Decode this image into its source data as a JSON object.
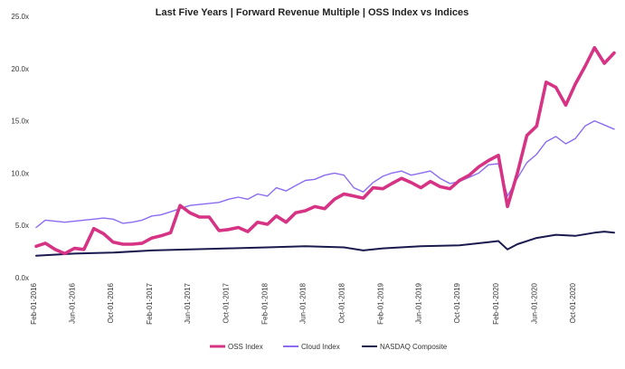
{
  "chart_data": {
    "type": "line",
    "title": "Last Five Years | Forward Revenue Multiple | OSS Index vs Indices",
    "xlabel": "",
    "ylabel": "",
    "ylim": [
      0,
      25
    ],
    "y_ticks": [
      "0.0x",
      "5.0x",
      "10.0x",
      "15.0x",
      "20.0x",
      "25.0x"
    ],
    "x_ticks": [
      {
        "label": "Feb-01-2016",
        "date": "2016-02-01"
      },
      {
        "label": "Jun-01-2016",
        "date": "2016-06-01"
      },
      {
        "label": "Oct-01-2016",
        "date": "2016-10-01"
      },
      {
        "label": "Feb-01-2017",
        "date": "2017-02-01"
      },
      {
        "label": "Jun-01-2017",
        "date": "2017-06-01"
      },
      {
        "label": "Oct-01-2017",
        "date": "2017-10-01"
      },
      {
        "label": "Feb-01-2018",
        "date": "2018-02-01"
      },
      {
        "label": "Jun-01-2018",
        "date": "2018-06-01"
      },
      {
        "label": "Oct-01-2018",
        "date": "2018-10-01"
      },
      {
        "label": "Feb-01-2019",
        "date": "2019-02-01"
      },
      {
        "label": "Jun-01-2019",
        "date": "2019-06-01"
      },
      {
        "label": "Oct-01-2019",
        "date": "2019-10-01"
      },
      {
        "label": "Feb-01-2020",
        "date": "2020-02-01"
      },
      {
        "label": "Jun-01-2020",
        "date": "2020-06-01"
      },
      {
        "label": "Oct-01-2020",
        "date": "2020-10-01"
      }
    ],
    "x_domain": [
      "2016-02-01",
      "2021-02-01"
    ],
    "grid": false,
    "legend_position": "bottom",
    "series": [
      {
        "name": "OSS Index",
        "color": "#d63384",
        "points": [
          [
            "2016-02-01",
            3.0
          ],
          [
            "2016-03-01",
            3.3
          ],
          [
            "2016-04-01",
            2.7
          ],
          [
            "2016-05-01",
            2.3
          ],
          [
            "2016-06-01",
            2.8
          ],
          [
            "2016-07-01",
            2.7
          ],
          [
            "2016-08-01",
            4.7
          ],
          [
            "2016-09-01",
            4.2
          ],
          [
            "2016-10-01",
            3.4
          ],
          [
            "2016-11-01",
            3.2
          ],
          [
            "2016-12-01",
            3.2
          ],
          [
            "2017-01-01",
            3.3
          ],
          [
            "2017-02-01",
            3.8
          ],
          [
            "2017-03-01",
            4.0
          ],
          [
            "2017-04-01",
            4.3
          ],
          [
            "2017-05-01",
            6.9
          ],
          [
            "2017-06-01",
            6.2
          ],
          [
            "2017-07-01",
            5.8
          ],
          [
            "2017-08-01",
            5.8
          ],
          [
            "2017-09-01",
            4.5
          ],
          [
            "2017-10-01",
            4.6
          ],
          [
            "2017-11-01",
            4.8
          ],
          [
            "2017-12-01",
            4.4
          ],
          [
            "2018-01-01",
            5.3
          ],
          [
            "2018-02-01",
            5.1
          ],
          [
            "2018-03-01",
            5.9
          ],
          [
            "2018-04-01",
            5.3
          ],
          [
            "2018-05-01",
            6.2
          ],
          [
            "2018-06-01",
            6.4
          ],
          [
            "2018-07-01",
            6.8
          ],
          [
            "2018-08-01",
            6.6
          ],
          [
            "2018-09-01",
            7.5
          ],
          [
            "2018-10-01",
            8.0
          ],
          [
            "2018-11-01",
            7.8
          ],
          [
            "2018-12-01",
            7.6
          ],
          [
            "2019-01-01",
            8.6
          ],
          [
            "2019-02-01",
            8.5
          ],
          [
            "2019-03-01",
            9.0
          ],
          [
            "2019-04-01",
            9.5
          ],
          [
            "2019-05-01",
            9.1
          ],
          [
            "2019-06-01",
            8.6
          ],
          [
            "2019-07-01",
            9.2
          ],
          [
            "2019-08-01",
            8.7
          ],
          [
            "2019-09-01",
            8.5
          ],
          [
            "2019-10-01",
            9.3
          ],
          [
            "2019-11-01",
            9.8
          ],
          [
            "2019-12-01",
            10.6
          ],
          [
            "2020-01-01",
            11.2
          ],
          [
            "2020-02-01",
            11.7
          ],
          [
            "2020-03-01",
            6.8
          ],
          [
            "2020-04-01",
            10.0
          ],
          [
            "2020-05-01",
            13.6
          ],
          [
            "2020-06-01",
            14.5
          ],
          [
            "2020-07-01",
            18.7
          ],
          [
            "2020-08-01",
            18.2
          ],
          [
            "2020-09-01",
            16.5
          ],
          [
            "2020-10-01",
            18.5
          ],
          [
            "2020-11-01",
            20.2
          ],
          [
            "2020-12-01",
            22.0
          ],
          [
            "2021-01-01",
            20.5
          ],
          [
            "2021-02-01",
            21.5
          ]
        ]
      },
      {
        "name": "Cloud Index",
        "color": "#8b6cf0",
        "points": [
          [
            "2016-02-01",
            4.8
          ],
          [
            "2016-03-01",
            5.5
          ],
          [
            "2016-04-01",
            5.4
          ],
          [
            "2016-05-01",
            5.3
          ],
          [
            "2016-06-01",
            5.4
          ],
          [
            "2016-07-01",
            5.5
          ],
          [
            "2016-08-01",
            5.6
          ],
          [
            "2016-09-01",
            5.7
          ],
          [
            "2016-10-01",
            5.6
          ],
          [
            "2016-11-01",
            5.2
          ],
          [
            "2016-12-01",
            5.3
          ],
          [
            "2017-01-01",
            5.5
          ],
          [
            "2017-02-01",
            5.9
          ],
          [
            "2017-03-01",
            6.0
          ],
          [
            "2017-04-01",
            6.3
          ],
          [
            "2017-05-01",
            6.6
          ],
          [
            "2017-06-01",
            6.9
          ],
          [
            "2017-07-01",
            7.0
          ],
          [
            "2017-08-01",
            7.1
          ],
          [
            "2017-09-01",
            7.2
          ],
          [
            "2017-10-01",
            7.5
          ],
          [
            "2017-11-01",
            7.7
          ],
          [
            "2017-12-01",
            7.5
          ],
          [
            "2018-01-01",
            8.0
          ],
          [
            "2018-02-01",
            7.8
          ],
          [
            "2018-03-01",
            8.6
          ],
          [
            "2018-04-01",
            8.3
          ],
          [
            "2018-05-01",
            8.8
          ],
          [
            "2018-06-01",
            9.3
          ],
          [
            "2018-07-01",
            9.4
          ],
          [
            "2018-08-01",
            9.8
          ],
          [
            "2018-09-01",
            10.0
          ],
          [
            "2018-10-01",
            9.8
          ],
          [
            "2018-11-01",
            8.6
          ],
          [
            "2018-12-01",
            8.2
          ],
          [
            "2019-01-01",
            9.1
          ],
          [
            "2019-02-01",
            9.7
          ],
          [
            "2019-03-01",
            10.0
          ],
          [
            "2019-04-01",
            10.2
          ],
          [
            "2019-05-01",
            9.8
          ],
          [
            "2019-06-01",
            10.0
          ],
          [
            "2019-07-01",
            10.2
          ],
          [
            "2019-08-01",
            9.5
          ],
          [
            "2019-09-01",
            9.0
          ],
          [
            "2019-10-01",
            9.2
          ],
          [
            "2019-11-01",
            9.6
          ],
          [
            "2019-12-01",
            10.0
          ],
          [
            "2020-01-01",
            10.8
          ],
          [
            "2020-02-01",
            10.9
          ],
          [
            "2020-03-01",
            7.8
          ],
          [
            "2020-04-01",
            9.5
          ],
          [
            "2020-05-01",
            11.0
          ],
          [
            "2020-06-01",
            11.8
          ],
          [
            "2020-07-01",
            13.0
          ],
          [
            "2020-08-01",
            13.5
          ],
          [
            "2020-09-01",
            12.8
          ],
          [
            "2020-10-01",
            13.3
          ],
          [
            "2020-11-01",
            14.5
          ],
          [
            "2020-12-01",
            15.0
          ],
          [
            "2021-01-01",
            14.6
          ],
          [
            "2021-02-01",
            14.2
          ]
        ]
      },
      {
        "name": "NASDAQ Composite",
        "color": "#1a1a4e",
        "points": [
          [
            "2016-02-01",
            2.1
          ],
          [
            "2016-06-01",
            2.3
          ],
          [
            "2016-10-01",
            2.4
          ],
          [
            "2017-02-01",
            2.6
          ],
          [
            "2017-06-01",
            2.7
          ],
          [
            "2017-10-01",
            2.8
          ],
          [
            "2018-02-01",
            2.9
          ],
          [
            "2018-06-01",
            3.0
          ],
          [
            "2018-10-01",
            2.9
          ],
          [
            "2018-12-01",
            2.6
          ],
          [
            "2019-02-01",
            2.8
          ],
          [
            "2019-06-01",
            3.0
          ],
          [
            "2019-10-01",
            3.1
          ],
          [
            "2020-01-01",
            3.4
          ],
          [
            "2020-02-01",
            3.5
          ],
          [
            "2020-03-01",
            2.7
          ],
          [
            "2020-04-01",
            3.2
          ],
          [
            "2020-06-01",
            3.8
          ],
          [
            "2020-08-01",
            4.1
          ],
          [
            "2020-10-01",
            4.0
          ],
          [
            "2020-12-01",
            4.3
          ],
          [
            "2021-01-01",
            4.4
          ],
          [
            "2021-02-01",
            4.3
          ]
        ]
      }
    ]
  }
}
